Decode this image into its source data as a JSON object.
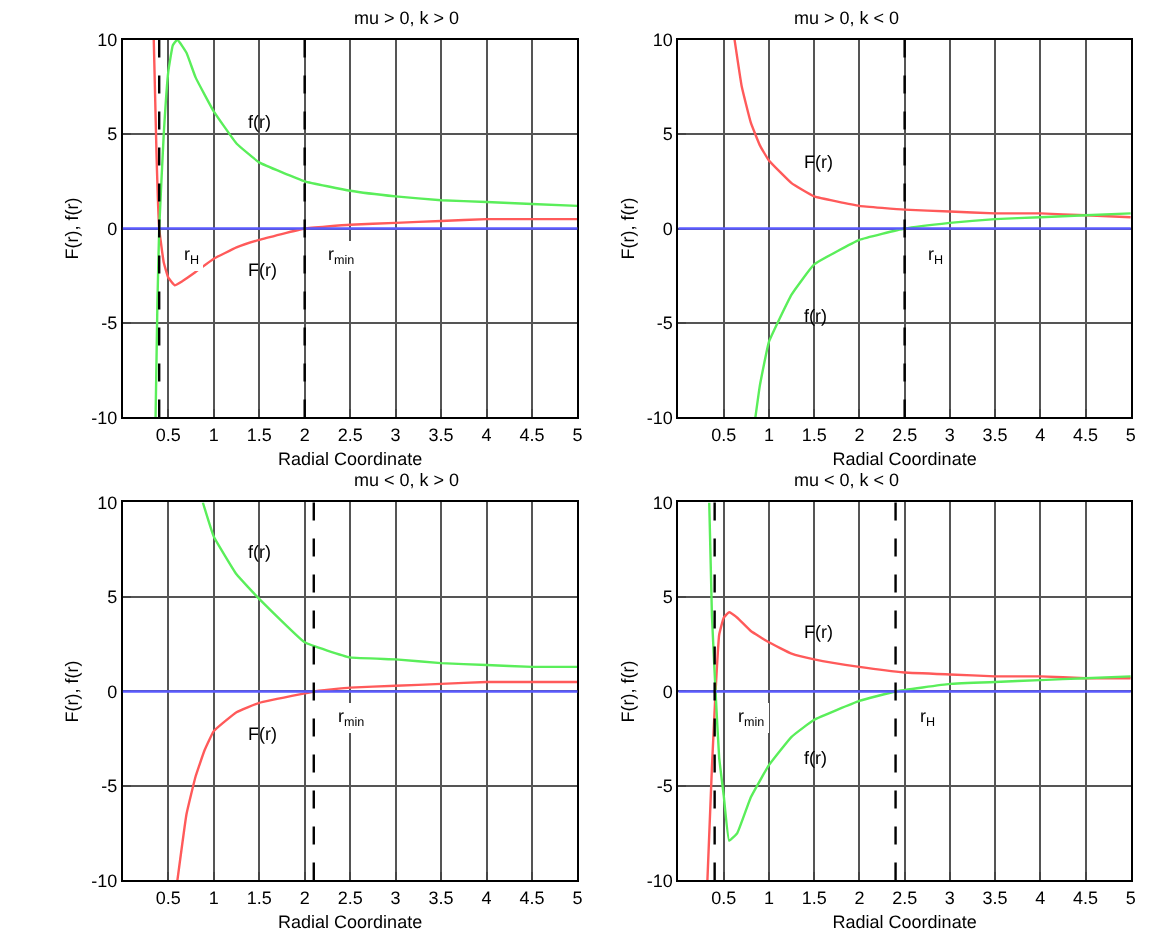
{
  "chart_data": [
    {
      "type": "line",
      "title": "mu > 0, k > 0",
      "xlabel": "Radial Coordinate",
      "ylabel": "F(r), f(r)",
      "xlim": [
        0,
        5
      ],
      "xticks": [
        0.5,
        1,
        1.5,
        2,
        2.5,
        3,
        3.5,
        4,
        4.5,
        5
      ],
      "ylim": [
        -10,
        10
      ],
      "yticks": [
        -10,
        -5,
        0,
        5,
        10
      ],
      "grid": true,
      "series": [
        {
          "name": "F(r)",
          "color": "#ff5a5a",
          "x": [
            0.34,
            0.37,
            0.4,
            0.45,
            0.5,
            0.57,
            0.65,
            0.8,
            1,
            1.25,
            1.5,
            2,
            2.5,
            3,
            3.5,
            4,
            5
          ],
          "values": [
            10,
            4,
            0,
            -1.8,
            -2.6,
            -3,
            -2.8,
            -2.3,
            -1.6,
            -1,
            -0.6,
            0,
            0.2,
            0.3,
            0.4,
            0.5,
            0.5
          ]
        },
        {
          "name": "f(r)",
          "color": "#5aee5a",
          "x": [
            0.36,
            0.38,
            0.4,
            0.45,
            0.5,
            0.55,
            0.6,
            0.7,
            0.8,
            1,
            1.25,
            1.5,
            2,
            2.5,
            3,
            3.5,
            4,
            4.5,
            5
          ],
          "values": [
            -10,
            -4,
            0,
            5,
            8.3,
            9.7,
            10,
            9.3,
            8,
            6.2,
            4.5,
            3.5,
            2.5,
            2,
            1.7,
            1.5,
            1.4,
            1.3,
            1.2
          ]
        }
      ],
      "ref_lines": [
        {
          "axis": "y",
          "value": 0,
          "color": "#5a5aff",
          "line_style": "solid"
        },
        {
          "axis": "x",
          "value": 0.4,
          "label": "r$_{H}$",
          "color": "#000000",
          "line_style": "dashed"
        },
        {
          "axis": "x",
          "value": 2,
          "label": "r$_{min}$",
          "color": "#000000",
          "line_style": "dashed"
        }
      ]
    },
    {
      "type": "line",
      "title": "mu > 0, k < 0",
      "xlabel": "Radial Coordinate",
      "ylabel": "F(r), f(r)",
      "xlim": [
        0,
        5
      ],
      "xticks": [
        0.5,
        1,
        1.5,
        2,
        2.5,
        3,
        3.5,
        4,
        4.5,
        5
      ],
      "ylim": [
        -10,
        10
      ],
      "yticks": [
        -10,
        -5,
        0,
        5,
        10
      ],
      "grid": true,
      "series": [
        {
          "name": "F(r)",
          "color": "#ff5a5a",
          "x": [
            0.62,
            0.7,
            0.8,
            0.9,
            1,
            1.25,
            1.5,
            2,
            2.5,
            3,
            3.5,
            4,
            4.5,
            5
          ],
          "values": [
            10,
            7.5,
            5.6,
            4.4,
            3.6,
            2.4,
            1.7,
            1.2,
            1,
            0.9,
            0.8,
            0.8,
            0.7,
            0.6
          ]
        },
        {
          "name": "f(r)",
          "color": "#5aee5a",
          "x": [
            0.85,
            0.9,
            1,
            1.25,
            1.5,
            2,
            2.5,
            3,
            3.5,
            4,
            4.5,
            5
          ],
          "values": [
            -10,
            -8.3,
            -6,
            -3.5,
            -1.9,
            -0.6,
            0,
            0.3,
            0.5,
            0.6,
            0.7,
            0.8
          ]
        }
      ],
      "ref_lines": [
        {
          "axis": "y",
          "value": 0,
          "color": "#5a5aff",
          "line_style": "solid"
        },
        {
          "axis": "x",
          "value": 2.5,
          "label": "r$_{H}$",
          "color": "#000000",
          "line_style": "dashed"
        }
      ]
    },
    {
      "type": "line",
      "title": "mu < 0, k > 0",
      "xlabel": "Radial Coordinate",
      "ylabel": "F(r), f(r)",
      "xlim": [
        0,
        5
      ],
      "xticks": [
        0.5,
        1,
        1.5,
        2,
        2.5,
        3,
        3.5,
        4,
        4.5,
        5
      ],
      "ylim": [
        -10,
        10
      ],
      "yticks": [
        -10,
        -5,
        0,
        5,
        10
      ],
      "grid": true,
      "series": [
        {
          "name": "F(r)",
          "color": "#ff5a5a",
          "x": [
            0.6,
            0.7,
            0.8,
            0.9,
            1,
            1.25,
            1.5,
            2,
            2.1,
            2.5,
            3,
            3.5,
            4,
            5
          ],
          "values": [
            -10,
            -6.5,
            -4.5,
            -3.1,
            -2.1,
            -1.1,
            -0.6,
            -0.1,
            0,
            0.2,
            0.3,
            0.4,
            0.5,
            0.5
          ]
        },
        {
          "name": "f(r)",
          "color": "#5aee5a",
          "x": [
            0.88,
            1,
            1.25,
            1.5,
            2,
            2.5,
            3,
            3.5,
            4,
            4.5,
            5
          ],
          "values": [
            10,
            8.2,
            6.2,
            4.9,
            2.6,
            1.8,
            1.7,
            1.5,
            1.4,
            1.3,
            1.3
          ]
        }
      ],
      "ref_lines": [
        {
          "axis": "y",
          "value": 0,
          "color": "#5a5aff",
          "line_style": "solid"
        },
        {
          "axis": "x",
          "value": 2.1,
          "label": "r$_{min}$",
          "color": "#000000",
          "line_style": "dashed"
        }
      ]
    },
    {
      "type": "line",
      "title": "mu < 0, k < 0",
      "xlabel": "Radial Coordinate",
      "ylabel": "F(r), f(r)",
      "xlim": [
        0,
        5
      ],
      "xticks": [
        0.5,
        1,
        1.5,
        2,
        2.5,
        3,
        3.5,
        4,
        4.5,
        5
      ],
      "ylim": [
        -10,
        10
      ],
      "yticks": [
        -10,
        -5,
        0,
        5,
        10
      ],
      "grid": true,
      "series": [
        {
          "name": "F(r)",
          "color": "#ff5a5a",
          "x": [
            0.32,
            0.37,
            0.41,
            0.45,
            0.5,
            0.56,
            0.65,
            0.8,
            1,
            1.25,
            1.5,
            2,
            2.5,
            3,
            3.5,
            4,
            4.5,
            5
          ],
          "values": [
            -10,
            -4,
            0,
            3,
            3.9,
            4.2,
            3.9,
            3.2,
            2.6,
            2,
            1.7,
            1.3,
            1,
            0.9,
            0.8,
            0.8,
            0.7,
            0.7
          ]
        },
        {
          "name": "f(r)",
          "color": "#5aee5a",
          "x": [
            0.34,
            0.37,
            0.41,
            0.45,
            0.5,
            0.56,
            0.65,
            0.8,
            1,
            1.25,
            1.5,
            2,
            2.4,
            3,
            3.5,
            4,
            4.5,
            5
          ],
          "values": [
            10,
            4,
            0,
            -3.5,
            -5.5,
            -7.9,
            -7.5,
            -5.6,
            -3.9,
            -2.4,
            -1.5,
            -0.5,
            0,
            0.4,
            0.5,
            0.6,
            0.7,
            0.8
          ]
        }
      ],
      "ref_lines": [
        {
          "axis": "y",
          "value": 0,
          "color": "#5a5aff",
          "line_style": "solid"
        },
        {
          "axis": "x",
          "value": 0.4,
          "label": "r$_{min}$",
          "color": "#000000",
          "line_style": "dashed"
        },
        {
          "axis": "x",
          "value": 2.4,
          "label": "r$_{H}$",
          "color": "#000000",
          "line_style": "dashed"
        }
      ]
    }
  ]
}
